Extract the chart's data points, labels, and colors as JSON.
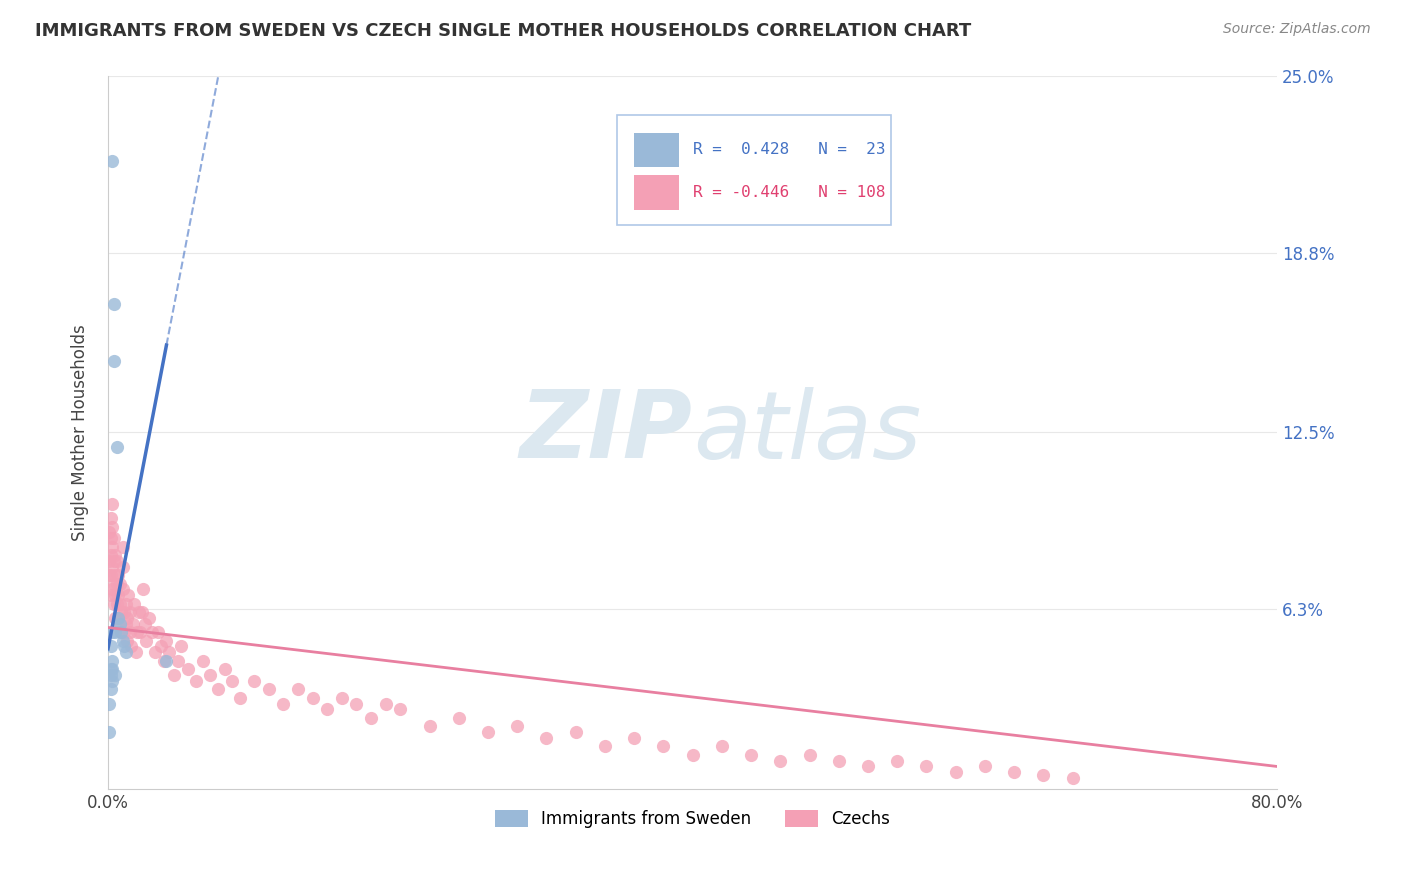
{
  "title": "IMMIGRANTS FROM SWEDEN VS CZECH SINGLE MOTHER HOUSEHOLDS CORRELATION CHART",
  "source": "Source: ZipAtlas.com",
  "ylabel": "Single Mother Households",
  "xlim": [
    0.0,
    0.8
  ],
  "ylim": [
    0.0,
    0.25
  ],
  "ytick_values": [
    0.063,
    0.125,
    0.188,
    0.25
  ],
  "ytick_labels": [
    "6.3%",
    "12.5%",
    "18.8%",
    "25.0%"
  ],
  "xtick_values": [
    0.0,
    0.8
  ],
  "xtick_labels": [
    "0.0%",
    "80.0%"
  ],
  "sweden_color": "#9ab9d8",
  "czech_color": "#f4a0b5",
  "sweden_line_color": "#4472c4",
  "czech_line_color": "#e87fa0",
  "right_tick_color": "#4472c4",
  "title_color": "#333333",
  "source_color": "#888888",
  "grid_color": "#e8e8e8",
  "background_color": "#ffffff",
  "watermark_color": "#dce8f0",
  "legend_box_color": "#e8f0f8",
  "legend_text_color_sweden": "#4472c4",
  "legend_text_color_czech": "#e04070",
  "sweden_R": 0.428,
  "sweden_N": 23,
  "czech_R": -0.446,
  "czech_N": 108,
  "sweden_x": [
    0.001,
    0.001,
    0.002,
    0.002,
    0.002,
    0.002,
    0.003,
    0.003,
    0.003,
    0.003,
    0.004,
    0.004,
    0.005,
    0.005,
    0.006,
    0.007,
    0.008,
    0.009,
    0.01,
    0.011,
    0.012,
    0.04,
    0.003
  ],
  "sweden_y": [
    0.02,
    0.03,
    0.035,
    0.04,
    0.042,
    0.05,
    0.038,
    0.042,
    0.045,
    0.055,
    0.15,
    0.17,
    0.04,
    0.055,
    0.12,
    0.06,
    0.058,
    0.055,
    0.052,
    0.05,
    0.048,
    0.045,
    0.22
  ],
  "czech_x": [
    0.001,
    0.001,
    0.001,
    0.002,
    0.002,
    0.002,
    0.002,
    0.002,
    0.003,
    0.003,
    0.003,
    0.003,
    0.003,
    0.004,
    0.004,
    0.004,
    0.004,
    0.005,
    0.005,
    0.005,
    0.005,
    0.006,
    0.006,
    0.006,
    0.007,
    0.007,
    0.007,
    0.008,
    0.008,
    0.008,
    0.009,
    0.009,
    0.01,
    0.01,
    0.01,
    0.011,
    0.011,
    0.012,
    0.012,
    0.013,
    0.013,
    0.014,
    0.015,
    0.015,
    0.016,
    0.017,
    0.018,
    0.019,
    0.02,
    0.021,
    0.022,
    0.023,
    0.024,
    0.025,
    0.026,
    0.028,
    0.03,
    0.032,
    0.034,
    0.036,
    0.038,
    0.04,
    0.042,
    0.045,
    0.048,
    0.05,
    0.055,
    0.06,
    0.065,
    0.07,
    0.075,
    0.08,
    0.085,
    0.09,
    0.1,
    0.11,
    0.12,
    0.13,
    0.14,
    0.15,
    0.16,
    0.17,
    0.18,
    0.19,
    0.2,
    0.22,
    0.24,
    0.26,
    0.28,
    0.3,
    0.32,
    0.34,
    0.36,
    0.38,
    0.4,
    0.42,
    0.44,
    0.46,
    0.48,
    0.5,
    0.52,
    0.54,
    0.56,
    0.58,
    0.6,
    0.62,
    0.64,
    0.66
  ],
  "czech_y": [
    0.075,
    0.08,
    0.09,
    0.068,
    0.075,
    0.082,
    0.088,
    0.095,
    0.07,
    0.078,
    0.085,
    0.092,
    0.1,
    0.065,
    0.072,
    0.08,
    0.088,
    0.06,
    0.068,
    0.075,
    0.082,
    0.065,
    0.072,
    0.08,
    0.06,
    0.068,
    0.075,
    0.058,
    0.065,
    0.072,
    0.055,
    0.062,
    0.07,
    0.078,
    0.085,
    0.055,
    0.062,
    0.058,
    0.065,
    0.052,
    0.06,
    0.068,
    0.055,
    0.062,
    0.05,
    0.058,
    0.065,
    0.048,
    0.055,
    0.062,
    0.055,
    0.062,
    0.07,
    0.058,
    0.052,
    0.06,
    0.055,
    0.048,
    0.055,
    0.05,
    0.045,
    0.052,
    0.048,
    0.04,
    0.045,
    0.05,
    0.042,
    0.038,
    0.045,
    0.04,
    0.035,
    0.042,
    0.038,
    0.032,
    0.038,
    0.035,
    0.03,
    0.035,
    0.032,
    0.028,
    0.032,
    0.03,
    0.025,
    0.03,
    0.028,
    0.022,
    0.025,
    0.02,
    0.022,
    0.018,
    0.02,
    0.015,
    0.018,
    0.015,
    0.012,
    0.015,
    0.012,
    0.01,
    0.012,
    0.01,
    0.008,
    0.01,
    0.008,
    0.006,
    0.008,
    0.006,
    0.005,
    0.004
  ]
}
